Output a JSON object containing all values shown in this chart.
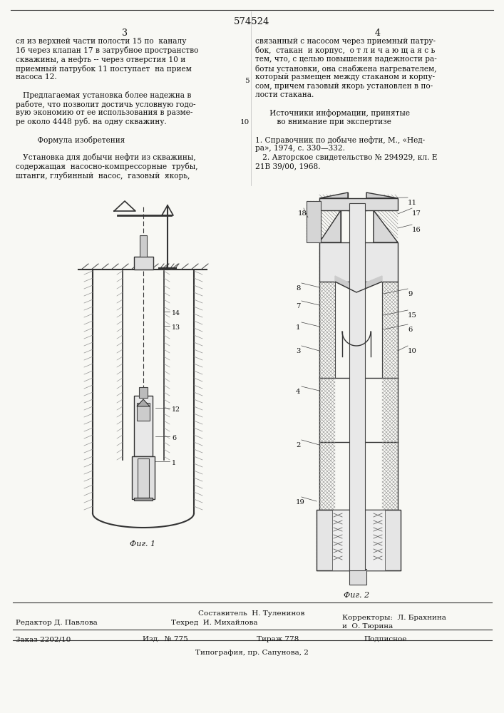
{
  "page_color": "#f8f8f4",
  "patent_number": "574524",
  "col_left_num": "3",
  "col_right_num": "4",
  "col_left_text": [
    "ся из верхней части полости 15 по  каналу",
    "16 через клапан 17 в затрубное пространство",
    "скважины, а нефть -- через отверстия 10 и",
    "приемный патрубок 11 поступает  на прием",
    "насоса 12.",
    "",
    "   Предлагаемая установка более надежна в",
    "работе, что позволит достичь условную годо-",
    "вую экономию от ее использования в разме-",
    "ре около 4448 руб. на одну скважину.",
    "",
    "         Формула изобретения",
    "",
    "   Установка для добычи нефти из скважины,",
    "содержащая  насосно-компрессорные  трубы,",
    "штанги, глубинный  насос,  газовый  якорь,"
  ],
  "col_right_text": [
    "связанный с насосом через приемный патру-",
    "бок,  стакан  и корпус,  о т л и ч а ю щ а я с ь",
    "тем, что, с целью повышения надежности ра-",
    "боты установки, она снабжена нагревателем,",
    "который размещен между стаканом и корпу-",
    "сом, причем газовый якорь установлен в по-",
    "лости стакана.",
    "",
    "      Источники информации, принятые",
    "         во внимание при экспертизе",
    "",
    "1. Справочник по добыче нефти, М., «Нед-",
    "ра», 1974, с. 330—332.",
    "   2. Авторское свидетельство № 294929, кл. Е",
    "21В 39/00, 1968."
  ],
  "fig1_caption": "Фиг. 1",
  "fig2_caption": "Фиг. 2",
  "footer_sestavitel": "Составитель  Н. Туленинов",
  "footer_redaktor": "Редактор Д. Павлова",
  "footer_tehred": "Техред  И. Михайлова",
  "footer_korrektory": "Корректоры:  Л. Брахнина",
  "footer_korrektory2": "и  О. Тюрина",
  "footer_zakaz": "Заказ 2202/10",
  "footer_izd": "Изд.  № 775",
  "footer_tirazh": "Тираж 778",
  "footer_podpisnoe": "Подписное",
  "footer_tipografia": "Типография, пр. Сапунова, 2",
  "line_number_5": "5",
  "line_number_10": "10"
}
